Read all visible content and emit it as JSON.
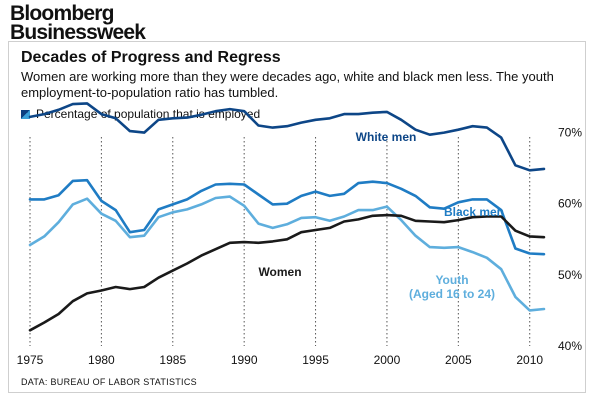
{
  "brand": {
    "line1": "Bloomberg",
    "line2": "Businessweek"
  },
  "header": {
    "title": "Decades of Progress and Regress",
    "subtitle": "Women are working more than they were decades ago, white and black men less. The youth employment-to-population ratio has tumbled."
  },
  "legend": {
    "label": "Percentage of population that is employed"
  },
  "source": "DATA: BUREAU OF LABOR STATISTICS",
  "colors": {
    "white_men": "#0d4687",
    "black_men": "#1f7cc4",
    "youth": "#5eaedd",
    "women": "#1a1a1a",
    "gridline": "#555555"
  },
  "chart_data": {
    "type": "line",
    "xlim": [
      1975,
      2011
    ],
    "ylim": [
      40,
      75
    ],
    "x_ticks": [
      "1975",
      "1980",
      "1985",
      "1990",
      "1995",
      "2000",
      "2005",
      "2010"
    ],
    "y_ticks": [
      "70%",
      "60%",
      "50%",
      "40%"
    ],
    "y_tick_values": [
      70,
      60,
      50,
      40
    ],
    "grid": "vertical dotted lines at 5-year ticks",
    "series": [
      {
        "name": "White men",
        "label_lines": [
          "White men"
        ],
        "color": "#0d4687",
        "x": [
          1975,
          1976,
          1977,
          1978,
          1979,
          1980,
          1981,
          1982,
          1983,
          1984,
          1985,
          1986,
          1987,
          1988,
          1989,
          1990,
          1991,
          1992,
          1993,
          1994,
          1995,
          1996,
          1997,
          1998,
          1999,
          2000,
          2001,
          2002,
          2003,
          2004,
          2005,
          2006,
          2007,
          2008,
          2009,
          2010,
          2011
        ],
        "y": [
          72.2,
          72.6,
          73.2,
          74.0,
          74.1,
          72.6,
          72.0,
          70.2,
          70.0,
          71.8,
          72.0,
          72.1,
          72.5,
          73.0,
          73.3,
          73.0,
          71.0,
          70.7,
          70.9,
          71.4,
          71.8,
          72.0,
          72.6,
          72.6,
          72.8,
          72.9,
          71.8,
          70.4,
          69.7,
          70.0,
          70.4,
          70.9,
          70.7,
          69.3,
          65.4,
          64.7,
          64.9
        ]
      },
      {
        "name": "Black men",
        "label_lines": [
          "Black men"
        ],
        "color": "#1f7cc4",
        "x": [
          1975,
          1976,
          1977,
          1978,
          1979,
          1980,
          1981,
          1982,
          1983,
          1984,
          1985,
          1986,
          1987,
          1988,
          1989,
          1990,
          1991,
          1992,
          1993,
          1994,
          1995,
          1996,
          1997,
          1998,
          1999,
          2000,
          2001,
          2002,
          2003,
          2004,
          2005,
          2006,
          2007,
          2008,
          2009,
          2010,
          2011
        ],
        "y": [
          60.6,
          60.6,
          61.2,
          63.2,
          63.3,
          60.4,
          59.1,
          56.0,
          56.3,
          59.2,
          59.9,
          60.6,
          61.8,
          62.7,
          62.8,
          62.7,
          61.3,
          59.9,
          60.0,
          61.1,
          61.7,
          61.1,
          61.4,
          62.9,
          63.1,
          62.9,
          62.1,
          61.1,
          59.5,
          59.3,
          60.2,
          60.6,
          60.6,
          59.1,
          53.7,
          53.0,
          52.9
        ]
      },
      {
        "name": "Youth",
        "label_lines": [
          "Youth",
          "(Aged 16 to 24)"
        ],
        "color": "#5eaedd",
        "x": [
          1975,
          1976,
          1977,
          1978,
          1979,
          1980,
          1981,
          1982,
          1983,
          1984,
          1985,
          1986,
          1987,
          1988,
          1989,
          1990,
          1991,
          1992,
          1993,
          1994,
          1995,
          1996,
          1997,
          1998,
          1999,
          2000,
          2001,
          2002,
          2003,
          2004,
          2005,
          2006,
          2007,
          2008,
          2009,
          2010,
          2011
        ],
        "y": [
          54.2,
          55.4,
          57.4,
          59.9,
          60.7,
          58.6,
          57.6,
          55.3,
          55.5,
          58.1,
          58.8,
          59.2,
          59.9,
          60.8,
          61.0,
          59.7,
          57.2,
          56.6,
          57.1,
          58.0,
          58.1,
          57.6,
          58.2,
          59.1,
          59.1,
          59.6,
          57.7,
          55.5,
          53.9,
          53.8,
          53.9,
          53.2,
          52.4,
          50.8,
          46.9,
          45.0,
          45.2
        ]
      },
      {
        "name": "Women",
        "label_lines": [
          "Women"
        ],
        "color": "#1a1a1a",
        "x": [
          1975,
          1976,
          1977,
          1978,
          1979,
          1980,
          1981,
          1982,
          1983,
          1984,
          1985,
          1986,
          1987,
          1988,
          1989,
          1990,
          1991,
          1992,
          1993,
          1994,
          1995,
          1996,
          1997,
          1998,
          1999,
          2000,
          2001,
          2002,
          2003,
          2004,
          2005,
          2006,
          2007,
          2008,
          2009,
          2010,
          2011
        ],
        "y": [
          42.2,
          43.3,
          44.5,
          46.3,
          47.4,
          47.8,
          48.3,
          48.0,
          48.3,
          49.6,
          50.6,
          51.6,
          52.7,
          53.6,
          54.5,
          54.6,
          54.5,
          54.7,
          55.0,
          56.0,
          56.3,
          56.6,
          57.5,
          57.8,
          58.3,
          58.4,
          58.3,
          57.6,
          57.5,
          57.4,
          57.7,
          58.1,
          58.2,
          58.2,
          56.2,
          55.4,
          55.3
        ]
      }
    ]
  }
}
